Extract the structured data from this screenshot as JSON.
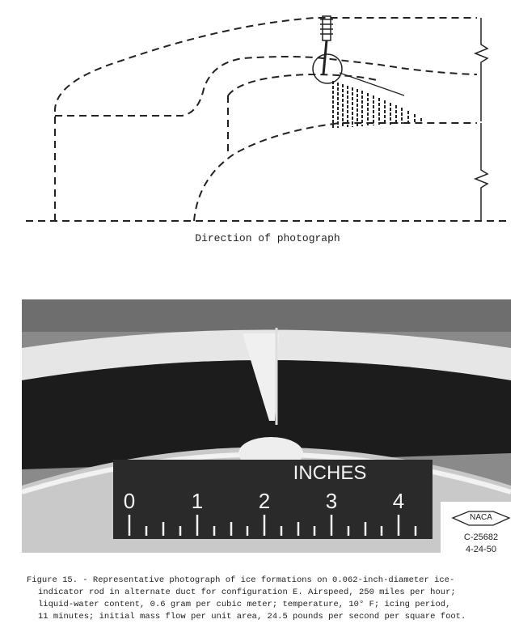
{
  "diagram": {
    "label": "Direction of photograph"
  },
  "photo": {
    "scale_title": "INCHES",
    "scale_numbers": [
      "0",
      "1",
      "2",
      "3",
      "4"
    ],
    "stamp": {
      "logo": "NACA",
      "number": "C-25682",
      "date": "4-24-50"
    }
  },
  "caption": {
    "lines": [
      "Figure 15. - Representative photograph of ice formations on 0.062-inch-diameter ice-",
      "indicator rod in alternate duct for configuration E.  Airspeed, 250 miles per hour;",
      "liquid-water content, 0.6 gram per cubic meter; temperature, 10° F; icing period,",
      "11 minutes; initial mass flow per unit area, 24.5 pounds per second per square foot."
    ]
  }
}
